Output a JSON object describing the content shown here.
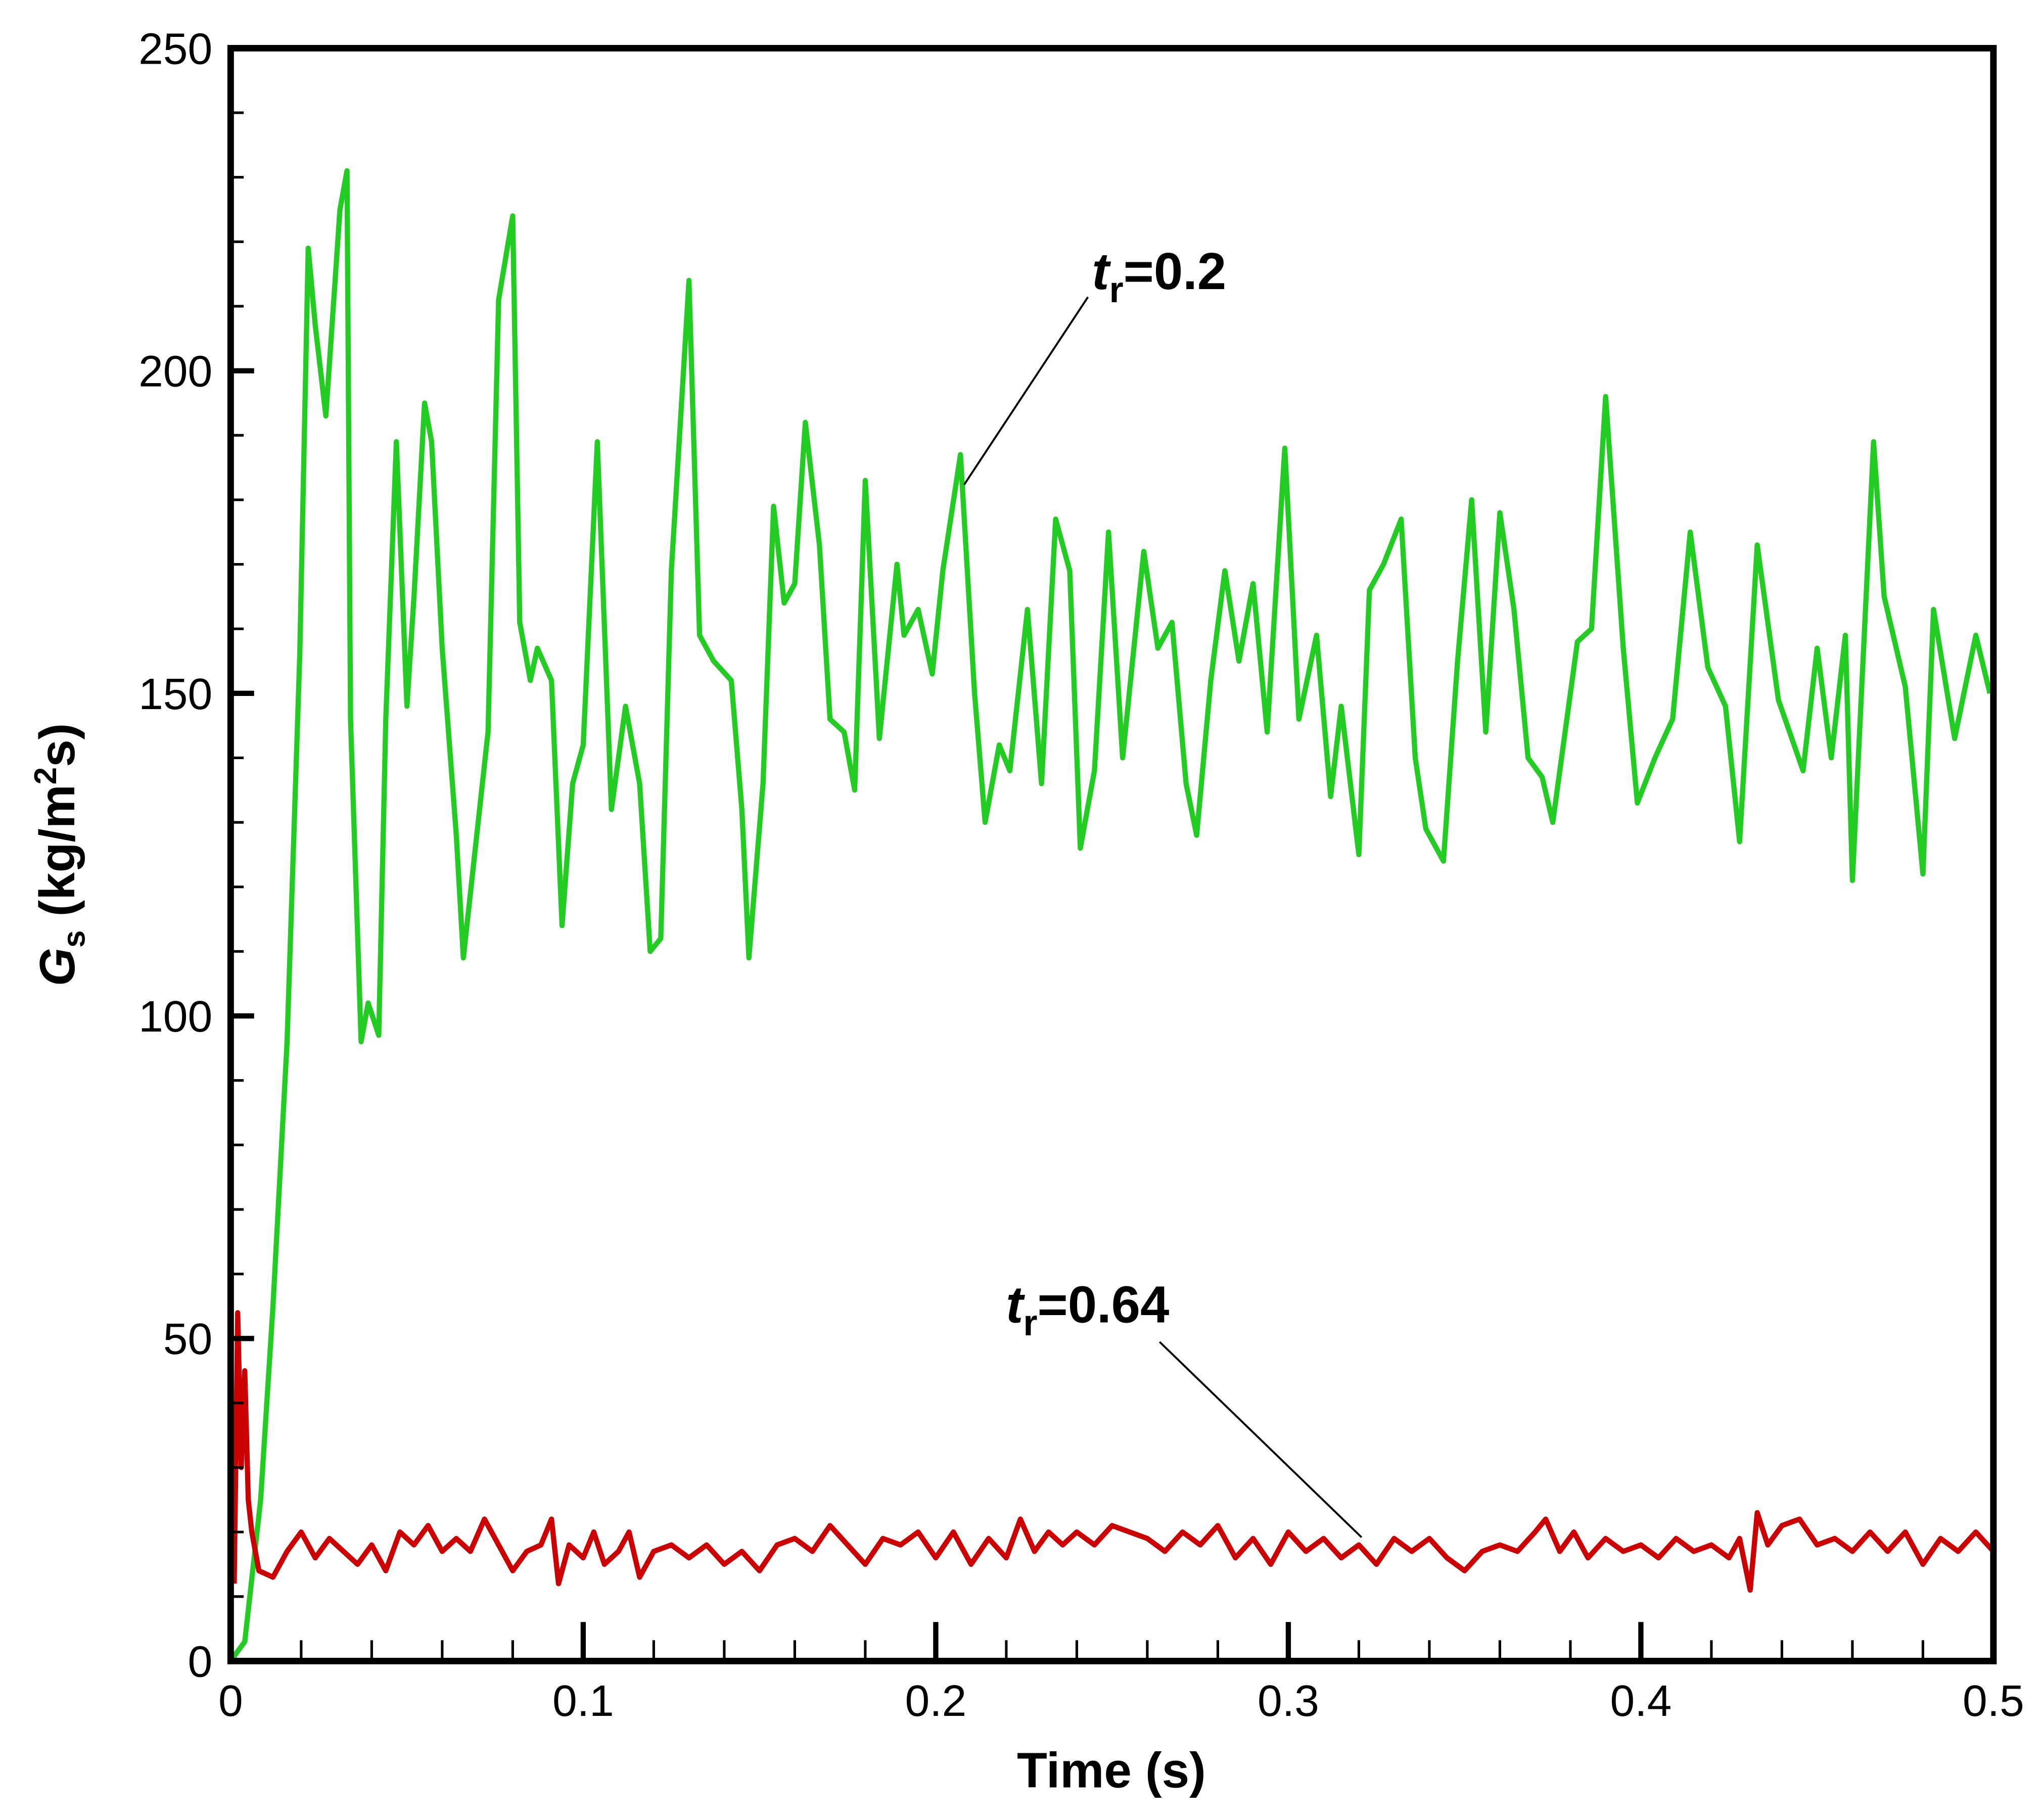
{
  "chart_data": {
    "type": "line",
    "x_label": "Time (s)",
    "y_label": {
      "symbol": "G",
      "sub": "s",
      "text": " (kg/m",
      "sup": "2",
      "end": "s)"
    },
    "xlim": [
      0,
      0.5
    ],
    "ylim": [
      0,
      250
    ],
    "xticks": [
      0,
      0.1,
      0.2,
      0.3,
      0.4,
      0.5
    ],
    "yticks": [
      0,
      50,
      100,
      150,
      200,
      250
    ],
    "xminorticks": [
      0.02,
      0.04,
      0.06,
      0.08,
      0.12,
      0.14,
      0.16,
      0.18,
      0.22,
      0.24,
      0.26,
      0.28,
      0.32,
      0.34,
      0.36,
      0.38,
      0.42,
      0.44,
      0.46,
      0.48
    ],
    "yminorticks": [
      10,
      20,
      30,
      40,
      60,
      70,
      80,
      90,
      110,
      120,
      130,
      140,
      160,
      170,
      180,
      190,
      210,
      220,
      230,
      240
    ],
    "series": [
      {
        "color": "#22cc22",
        "annotation": {
          "italic": "t",
          "sub": "r",
          "text": "=0.2"
        },
        "x": [
          0,
          0.004,
          0.0085,
          0.012,
          0.016,
          0.0196,
          0.022,
          0.024,
          0.027,
          0.029,
          0.031,
          0.033,
          0.034,
          0.037,
          0.039,
          0.042,
          0.044,
          0.047,
          0.05,
          0.052,
          0.055,
          0.057,
          0.06,
          0.064,
          0.066,
          0.069,
          0.073,
          0.076,
          0.08,
          0.082,
          0.085,
          0.087,
          0.091,
          0.094,
          0.097,
          0.1,
          0.104,
          0.108,
          0.112,
          0.116,
          0.119,
          0.122,
          0.125,
          0.13,
          0.133,
          0.137,
          0.142,
          0.145,
          0.147,
          0.151,
          0.154,
          0.157,
          0.16,
          0.163,
          0.167,
          0.17,
          0.174,
          0.177,
          0.18,
          0.184,
          0.189,
          0.191,
          0.195,
          0.199,
          0.202,
          0.207,
          0.211,
          0.214,
          0.218,
          0.221,
          0.226,
          0.23,
          0.234,
          0.238,
          0.241,
          0.245,
          0.249,
          0.253,
          0.259,
          0.263,
          0.267,
          0.271,
          0.274,
          0.278,
          0.282,
          0.286,
          0.29,
          0.294,
          0.299,
          0.303,
          0.308,
          0.312,
          0.315,
          0.32,
          0.323,
          0.327,
          0.332,
          0.336,
          0.339,
          0.344,
          0.348,
          0.352,
          0.356,
          0.36,
          0.364,
          0.368,
          0.372,
          0.375,
          0.382,
          0.386,
          0.39,
          0.395,
          0.399,
          0.404,
          0.409,
          0.414,
          0.419,
          0.424,
          0.428,
          0.433,
          0.439,
          0.446,
          0.45,
          0.454,
          0.458,
          0.46,
          0.466,
          0.469,
          0.475,
          0.48,
          0.483,
          0.489,
          0.495,
          0.499
        ],
        "values": [
          0,
          3,
          25,
          55,
          96,
          156,
          219,
          207,
          193,
          209,
          225,
          231,
          146,
          96,
          102,
          97,
          146,
          189,
          148,
          165,
          195,
          189,
          157,
          128,
          109,
          124,
          144,
          211,
          224,
          161,
          152,
          157,
          152,
          114,
          136,
          142,
          189,
          132,
          148,
          136,
          110,
          112,
          169,
          214,
          159,
          155,
          152,
          132,
          109,
          136,
          179,
          164,
          167,
          192,
          173,
          146,
          144,
          135,
          183,
          143,
          170,
          159,
          163,
          153,
          169,
          187,
          150,
          130,
          142,
          138,
          163,
          136,
          177,
          169,
          126,
          138,
          175,
          140,
          172,
          157,
          161,
          136,
          128,
          152,
          169,
          155,
          167,
          144,
          188,
          146,
          159,
          134,
          148,
          125,
          166,
          170,
          177,
          140,
          129,
          124,
          155,
          180,
          144,
          178,
          163,
          140,
          137,
          130,
          158,
          160,
          196,
          157,
          133,
          140,
          146,
          175,
          154,
          148,
          127,
          173,
          149,
          138,
          157,
          140,
          159,
          121,
          189,
          165,
          151,
          122,
          163,
          143,
          159,
          150
        ]
      },
      {
        "color": "#cc0000",
        "annotation": {
          "italic": "t",
          "sub": "r",
          "text": "=0.64"
        },
        "x": [
          0.001,
          0.002,
          0.003,
          0.004,
          0.005,
          0.006,
          0.008,
          0.012,
          0.016,
          0.02,
          0.024,
          0.028,
          0.032,
          0.036,
          0.04,
          0.044,
          0.048,
          0.052,
          0.056,
          0.06,
          0.064,
          0.068,
          0.072,
          0.076,
          0.08,
          0.084,
          0.088,
          0.091,
          0.093,
          0.096,
          0.1,
          0.103,
          0.106,
          0.11,
          0.113,
          0.116,
          0.12,
          0.125,
          0.13,
          0.135,
          0.14,
          0.145,
          0.15,
          0.155,
          0.16,
          0.165,
          0.17,
          0.175,
          0.18,
          0.185,
          0.19,
          0.195,
          0.2,
          0.205,
          0.21,
          0.215,
          0.22,
          0.224,
          0.228,
          0.232,
          0.236,
          0.24,
          0.245,
          0.25,
          0.255,
          0.26,
          0.265,
          0.27,
          0.275,
          0.28,
          0.285,
          0.29,
          0.295,
          0.3,
          0.305,
          0.31,
          0.315,
          0.32,
          0.325,
          0.33,
          0.335,
          0.34,
          0.345,
          0.35,
          0.355,
          0.36,
          0.365,
          0.37,
          0.373,
          0.377,
          0.381,
          0.385,
          0.39,
          0.395,
          0.4,
          0.405,
          0.41,
          0.415,
          0.42,
          0.425,
          0.428,
          0.431,
          0.433,
          0.436,
          0.44,
          0.445,
          0.45,
          0.455,
          0.46,
          0.465,
          0.47,
          0.475,
          0.48,
          0.485,
          0.49,
          0.495,
          0.5
        ],
        "values": [
          12,
          54,
          30,
          45,
          25,
          20,
          14,
          13,
          17,
          20,
          16,
          19,
          17,
          15,
          18,
          14,
          20,
          18,
          21,
          17,
          19,
          17,
          22,
          18,
          14,
          17,
          18,
          22,
          12,
          18,
          16,
          20,
          15,
          17,
          20,
          13,
          17,
          18,
          16,
          18,
          15,
          17,
          14,
          18,
          19,
          17,
          21,
          18,
          15,
          19,
          18,
          20,
          16,
          20,
          15,
          19,
          16,
          22,
          17,
          20,
          18,
          20,
          18,
          21,
          20,
          19,
          17,
          20,
          18,
          21,
          16,
          19,
          15,
          20,
          17,
          19,
          16,
          18,
          15,
          19,
          17,
          19,
          16,
          14,
          17,
          18,
          17,
          20,
          22,
          17,
          20,
          16,
          19,
          17,
          18,
          16,
          19,
          17,
          18,
          16,
          19,
          11,
          23,
          18,
          21,
          22,
          18,
          19,
          17,
          20,
          17,
          20,
          15,
          19,
          17,
          20,
          17
        ]
      }
    ]
  }
}
